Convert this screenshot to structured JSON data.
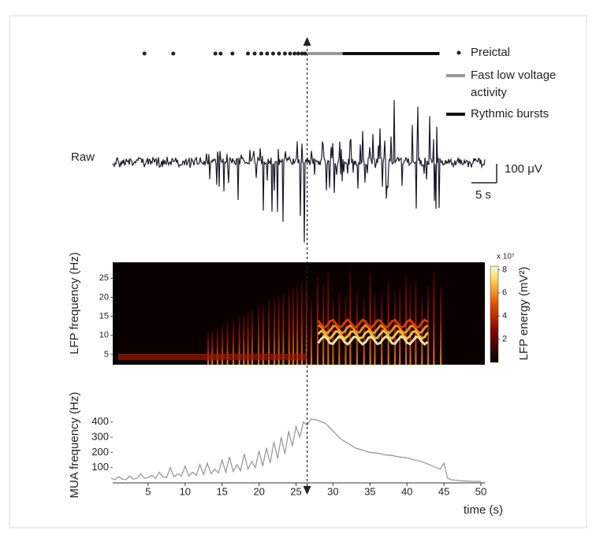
{
  "chart_data": [
    {
      "type": "trace",
      "label": "Raw",
      "xlim": [
        0,
        51
      ],
      "series": [
        {
          "name": "Preictal",
          "color": "#222",
          "x": [
            4.5,
            8.4,
            14.1,
            14.8,
            16.4,
            18.5,
            19.4,
            20.3,
            21.1,
            21.9,
            22.7,
            23.5,
            24.2,
            24.8,
            25.3,
            25.8,
            26.2
          ]
        },
        {
          "name": "Fast low voltage activity",
          "color": "#999",
          "x": [
            26.5,
            31.3
          ]
        },
        {
          "name": "Rythmic bursts",
          "color": "#111",
          "x": [
            31.3,
            44.4
          ]
        }
      ],
      "scale_bar": {
        "amplitude": "100 μV",
        "time": "5 s"
      }
    },
    {
      "type": "spectrogram",
      "xlim": [
        0,
        51
      ],
      "ylabel": "LFP frequency (Hz)",
      "ylim": [
        2.3,
        29.2
      ],
      "yticks": [
        5,
        10,
        15,
        20,
        25
      ],
      "colorbar": {
        "label": "LFP energy (mV²)",
        "multiplier": "x 10⁷",
        "lim": [
          0,
          8.3
        ],
        "ticks": [
          2,
          4,
          6,
          8
        ]
      }
    },
    {
      "type": "line",
      "xlabel": "time (s)",
      "ylabel": "MUA frequency (Hz)",
      "color": "#9a9a9a",
      "xlim": [
        0,
        51
      ],
      "ylim": [
        0,
        440
      ],
      "xticks": [
        5,
        10,
        15,
        20,
        25,
        30,
        35,
        40,
        45,
        50
      ],
      "yticks": [
        100,
        200,
        300,
        400
      ],
      "onset": 26.5,
      "x": [
        0,
        0.5,
        1,
        1.5,
        2,
        2.5,
        3,
        3.5,
        4,
        4.5,
        5,
        5.5,
        6,
        6.5,
        7,
        7.5,
        8,
        8.5,
        9,
        9.5,
        10,
        10.5,
        11,
        11.5,
        12,
        12.5,
        13,
        13.5,
        14,
        14.5,
        15,
        15.5,
        16,
        16.5,
        17,
        17.5,
        18,
        18.5,
        19,
        19.5,
        20,
        20.5,
        21,
        21.5,
        22,
        22.5,
        23,
        23.5,
        24,
        24.5,
        25,
        25.5,
        26,
        26.5,
        27,
        28,
        29,
        30,
        31,
        32,
        33,
        34,
        35,
        36,
        37,
        38,
        39,
        40,
        41,
        42,
        43,
        44,
        44.5,
        45,
        45.5,
        46,
        47,
        48,
        49,
        50
      ],
      "values": [
        30,
        20,
        40,
        25,
        20,
        45,
        25,
        30,
        60,
        30,
        35,
        50,
        30,
        70,
        40,
        35,
        100,
        40,
        60,
        45,
        110,
        45,
        70,
        50,
        120,
        55,
        130,
        60,
        90,
        65,
        150,
        70,
        170,
        75,
        120,
        80,
        190,
        90,
        140,
        100,
        210,
        110,
        230,
        130,
        270,
        160,
        300,
        190,
        340,
        240,
        370,
        300,
        400,
        380,
        420,
        410,
        390,
        340,
        290,
        260,
        230,
        215,
        200,
        195,
        185,
        180,
        170,
        165,
        150,
        140,
        120,
        100,
        90,
        130,
        30,
        20,
        15,
        12,
        10,
        10
      ]
    }
  ]
}
